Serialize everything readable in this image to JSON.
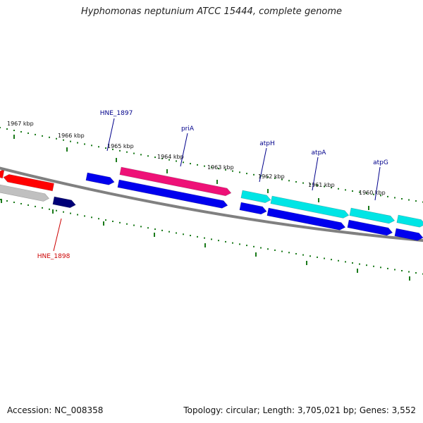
{
  "title": "Hyphomonas neptunium ATCC 15444, complete genome",
  "footer": {
    "accession": "Accession: NC_008358",
    "summary": "Topology: circular; Length: 3,705,021 bp; Genes: 3,552"
  },
  "colors": {
    "ruler": "#1a7a1a",
    "backbone": "#808080",
    "label_blue": "#00008b",
    "label_red": "#cc0000",
    "red": "#ff0000",
    "gray": "#c0c0c0",
    "blue": "#0000ee",
    "navy": "#000077",
    "pink": "#ee1177",
    "cyan": "#00e5e5"
  },
  "ruler_labels": [
    "1967 kbp",
    "1966 kbp",
    "1965 kbp",
    "1964 kbp",
    "1963 kbp",
    "1962 kbp",
    "1961 kbp",
    "1960 kbp"
  ],
  "gene_labels": [
    {
      "text": "HNE_1897",
      "color": "label_blue"
    },
    {
      "text": "priA",
      "color": "label_blue"
    },
    {
      "text": "atpH",
      "color": "label_blue"
    },
    {
      "text": "atpA",
      "color": "label_blue"
    },
    {
      "text": "atpG",
      "color": "label_blue"
    },
    {
      "text": "HNE_1898",
      "color": "label_red"
    }
  ],
  "genes": [
    {
      "strand": "upper",
      "dir": "left",
      "color": "red"
    },
    {
      "strand": "upper",
      "dir": "left",
      "color": "red"
    },
    {
      "strand": "upper",
      "dir": "right",
      "color": "blue"
    },
    {
      "strand": "upper",
      "dir": "right",
      "color": "pink"
    },
    {
      "strand": "upper",
      "dir": "right",
      "color": "cyan"
    },
    {
      "strand": "upper",
      "dir": "right",
      "color": "cyan"
    },
    {
      "strand": "upper",
      "dir": "right",
      "color": "cyan"
    },
    {
      "strand": "upper",
      "dir": "right",
      "color": "cyan"
    },
    {
      "strand": "lower",
      "dir": "right",
      "color": "gray"
    },
    {
      "strand": "lower",
      "dir": "right",
      "color": "navy"
    },
    {
      "strand": "lower",
      "dir": "right",
      "color": "blue"
    },
    {
      "strand": "lower",
      "dir": "right",
      "color": "blue"
    },
    {
      "strand": "lower",
      "dir": "right",
      "color": "blue"
    },
    {
      "strand": "lower",
      "dir": "right",
      "color": "blue"
    },
    {
      "strand": "lower",
      "dir": "right",
      "color": "blue"
    }
  ]
}
